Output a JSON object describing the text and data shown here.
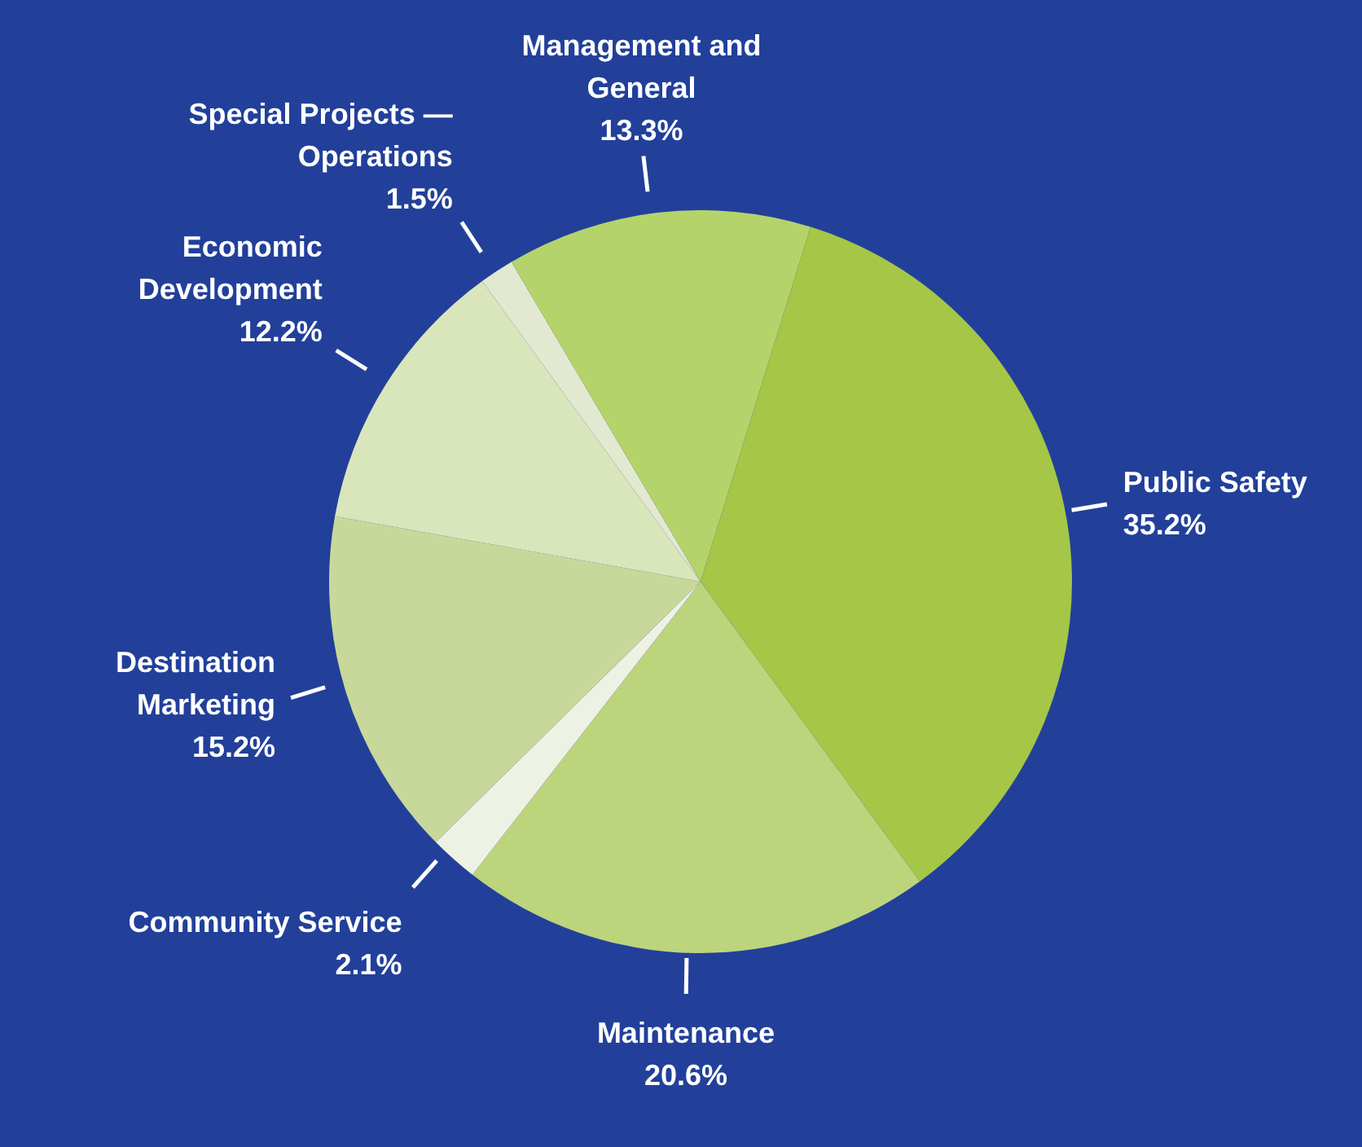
{
  "chart_data": {
    "type": "pie",
    "categories": [
      "Special Projects — Operations",
      "Management and General",
      "Public Safety",
      "Maintenance",
      "Community Service",
      "Destination Marketing",
      "Economic Development"
    ],
    "values": [
      1.5,
      13.3,
      35.2,
      20.6,
      2.1,
      15.2,
      12.2
    ],
    "colors": [
      "#e3e9d0",
      "#b5d36b",
      "#a5c646",
      "#bcd47c",
      "#eef2e4",
      "#c8d89a",
      "#d9e5bb"
    ],
    "value_labels": [
      "1.5%",
      "13.3%",
      "35.2%",
      "20.6%",
      "2.1%",
      "15.2%",
      "12.2%"
    ],
    "legend": false
  }
}
